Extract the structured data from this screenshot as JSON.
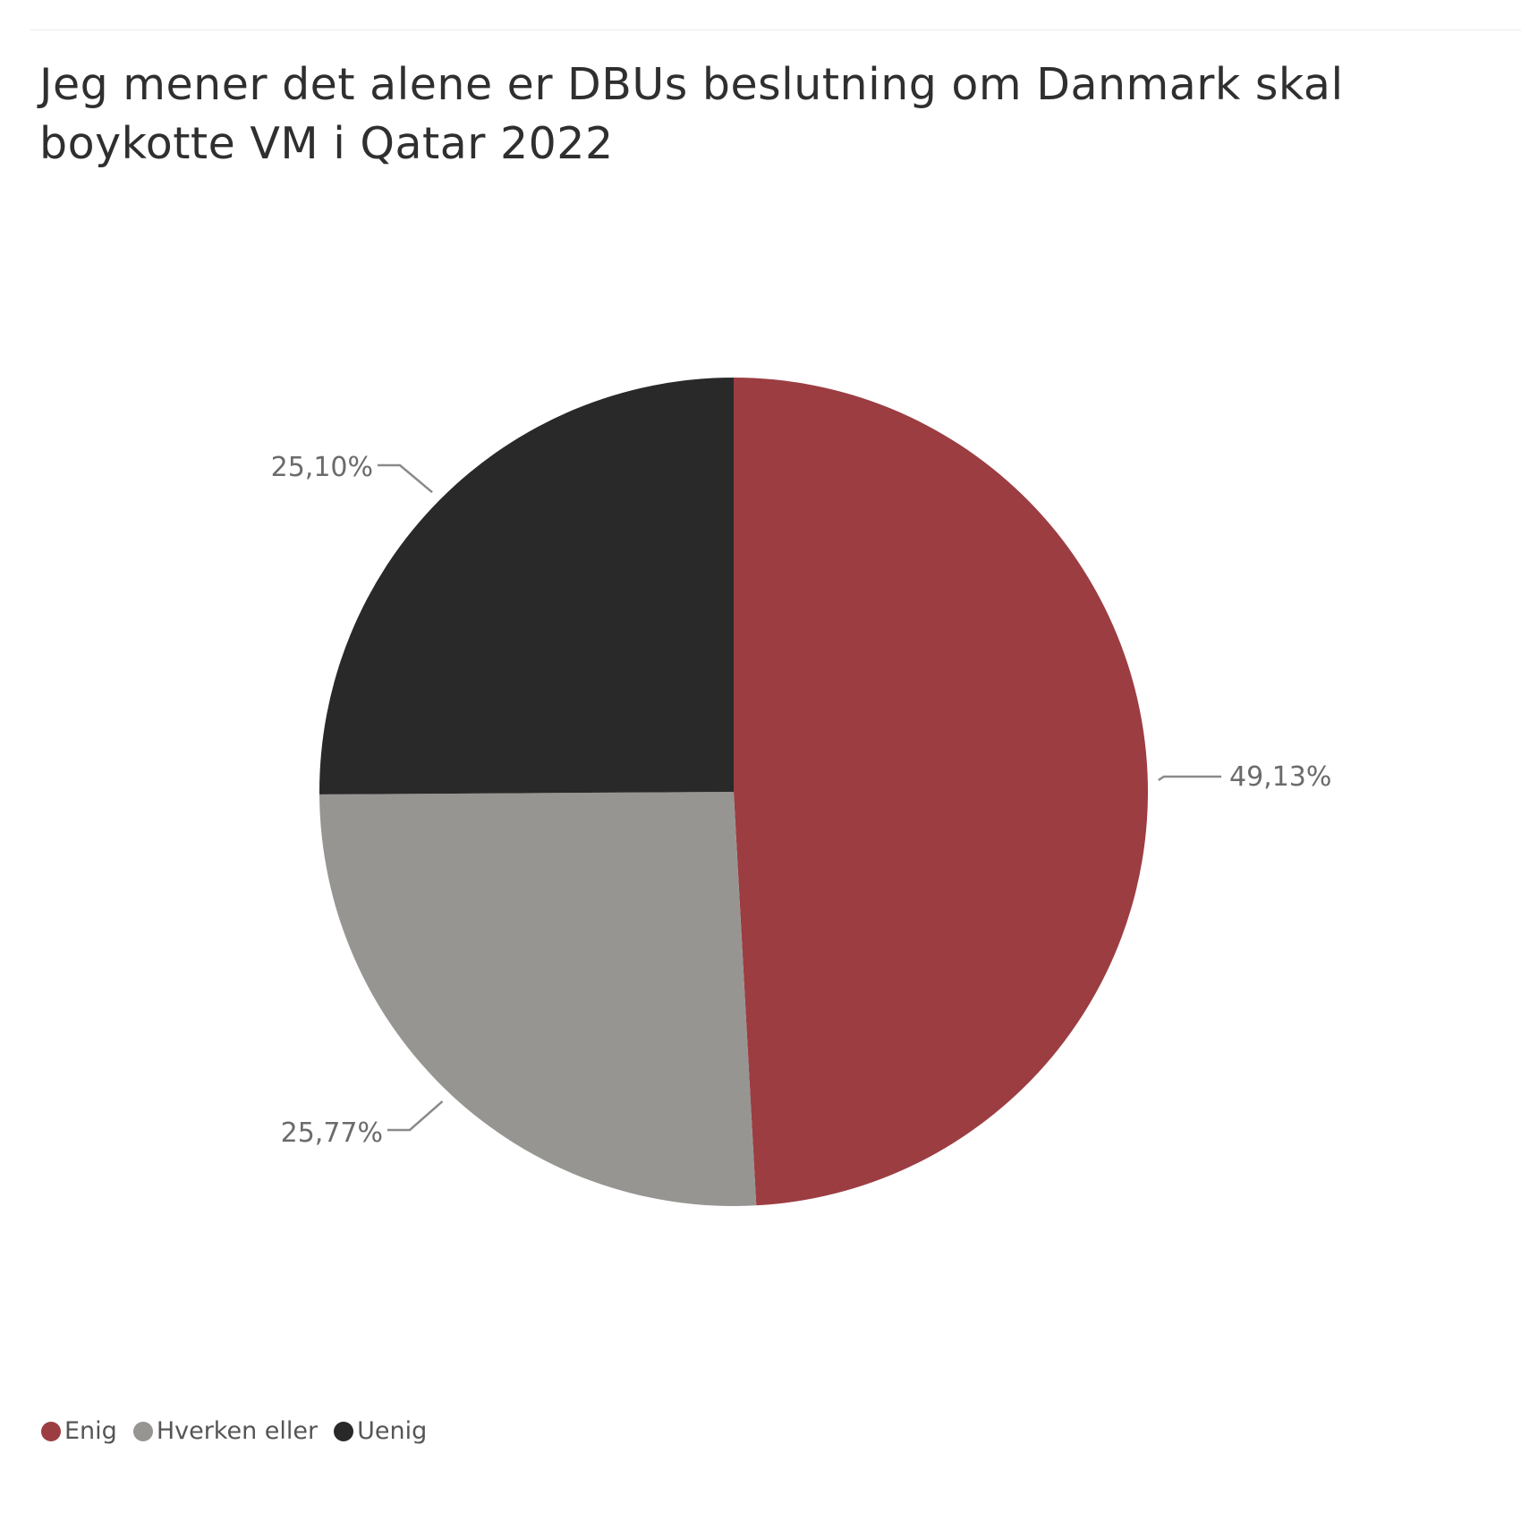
{
  "chart_data": {
    "type": "pie",
    "title": "Jeg mener det alene er DBUs beslutning om Danmark skal boykotte VM i Qatar 2022",
    "slices": [
      {
        "name": "Enig",
        "value": 49.13,
        "label": "49,13%",
        "color": "#9c3d42"
      },
      {
        "name": "Hverken eller",
        "value": 25.77,
        "label": "25,77%",
        "color": "#979592"
      },
      {
        "name": "Uenig",
        "value": 25.1,
        "label": "25,10%",
        "color": "#292929"
      }
    ],
    "start_angle_deg": 0,
    "direction": "clockwise",
    "legend_position": "bottom-left"
  }
}
